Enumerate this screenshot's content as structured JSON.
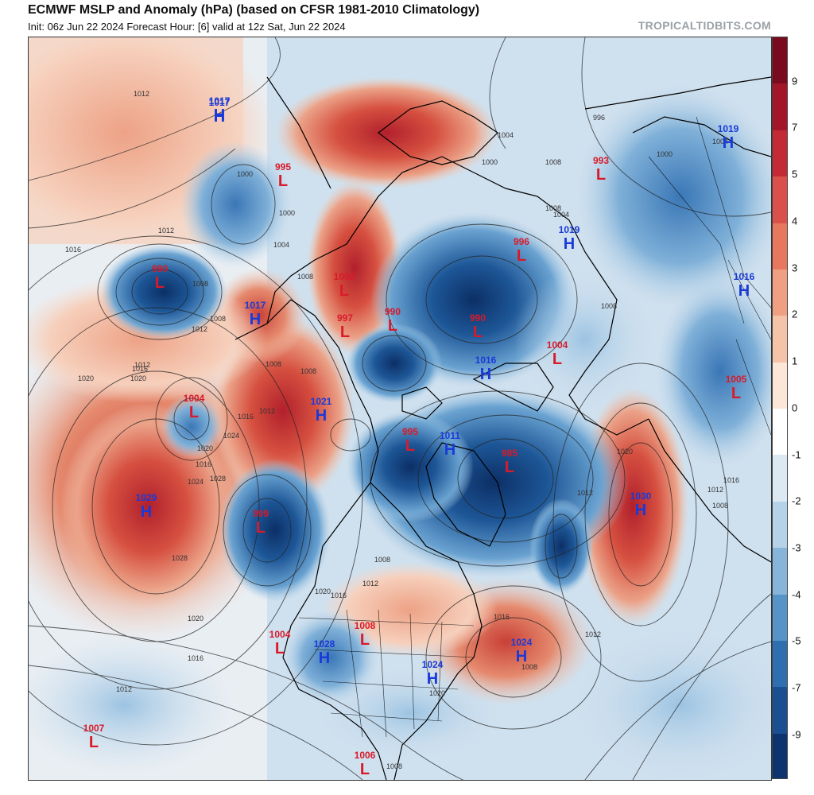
{
  "header": {
    "title": "ECMWF MSLP and Anomaly (hPa) (based on CFSR 1981-2010 Climatology)",
    "subtitle": "Init: 06z Jun 22 2024   Forecast Hour: [6]   valid at 12z Sat, Jun 22 2024",
    "credit": "TROPICALTIDBITS.COM"
  },
  "colorbar": {
    "tick_labels": [
      "9",
      "7",
      "5",
      "4",
      "3",
      "2",
      "1",
      "0",
      "-1",
      "-2",
      "-3",
      "-4",
      "-5",
      "-7",
      "-9"
    ],
    "colors": [
      "#7a0a1e",
      "#a3162a",
      "#c42a36",
      "#d9514a",
      "#e7775f",
      "#efa082",
      "#f5c4a8",
      "#fbe6d8",
      "#ffffff",
      "#dde9f2",
      "#b6d2e8",
      "#86b5d9",
      "#5693c7",
      "#2f6fb0",
      "#1a4f92",
      "#0e3470"
    ]
  },
  "map": {
    "pressure_centers": [
      {
        "type": "H",
        "value": "1017"
      },
      {
        "type": "L",
        "value": "995"
      },
      {
        "type": "L",
        "value": "990"
      },
      {
        "type": "L",
        "value": "990"
      },
      {
        "type": "L",
        "value": "996"
      },
      {
        "type": "H",
        "value": "1019"
      },
      {
        "type": "L",
        "value": "993"
      },
      {
        "type": "H",
        "value": "1019"
      },
      {
        "type": "H",
        "value": "1016"
      },
      {
        "type": "H",
        "value": "1017"
      },
      {
        "type": "H",
        "value": "1017"
      },
      {
        "type": "L",
        "value": "1002"
      },
      {
        "type": "L",
        "value": "997"
      },
      {
        "type": "L",
        "value": "990"
      },
      {
        "type": "L",
        "value": "1004"
      },
      {
        "type": "H",
        "value": "1016"
      },
      {
        "type": "L",
        "value": "1005"
      },
      {
        "type": "L",
        "value": "1004"
      },
      {
        "type": "H",
        "value": "1021"
      },
      {
        "type": "L",
        "value": "995"
      },
      {
        "type": "H",
        "value": "1011"
      },
      {
        "type": "L",
        "value": "985"
      },
      {
        "type": "H",
        "value": "1029"
      },
      {
        "type": "L",
        "value": "999"
      },
      {
        "type": "H",
        "value": "1030"
      },
      {
        "type": "L",
        "value": "1004"
      },
      {
        "type": "H",
        "value": "1028"
      },
      {
        "type": "L",
        "value": "1008"
      },
      {
        "type": "H",
        "value": "1024"
      },
      {
        "type": "H",
        "value": "1024"
      },
      {
        "type": "L",
        "value": "1007"
      },
      {
        "type": "L",
        "value": "1006"
      }
    ],
    "isobar_labels": [
      "1012",
      "1016",
      "1012",
      "1008",
      "1000",
      "1004",
      "1000",
      "1008",
      "1012",
      "1008",
      "1012",
      "1016",
      "1020",
      "1024",
      "1028",
      "1016",
      "1020",
      "1016",
      "1012",
      "1008",
      "1008",
      "1020",
      "1024",
      "1028",
      "1020",
      "1016",
      "1012",
      "1020",
      "1016",
      "1012",
      "1008",
      "1008",
      "1020",
      "1016",
      "1012",
      "1008",
      "1000",
      "1004",
      "1008",
      "996",
      "1004",
      "1008",
      "1008",
      "1012",
      "1020",
      "1016",
      "1012",
      "1008",
      "1000",
      "1004"
    ]
  }
}
